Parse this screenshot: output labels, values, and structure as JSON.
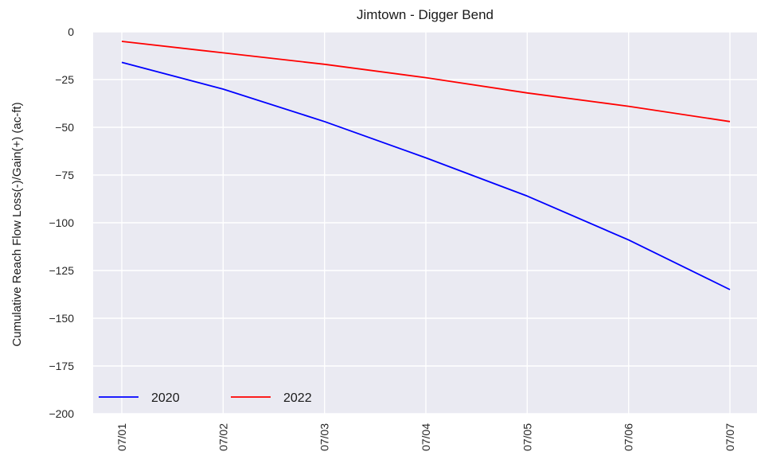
{
  "chart_data": {
    "type": "line",
    "title": "Jimtown - Digger Bend",
    "xlabel": "",
    "ylabel": "Cumulative Reach Flow Loss(-)/Gain(+) (ac-ft)",
    "x": [
      "07/01",
      "07/02",
      "07/03",
      "07/04",
      "07/05",
      "07/06",
      "07/07"
    ],
    "yticks": [
      0,
      -25,
      -50,
      -75,
      -100,
      -125,
      -150,
      -175,
      -200
    ],
    "ytick_labels": [
      "0",
      "−25",
      "−50",
      "−75",
      "−100",
      "−125",
      "−150",
      "−175",
      "−200"
    ],
    "ylim": [
      -200,
      0
    ],
    "grid": true,
    "legend_position": "bottom-left",
    "series": [
      {
        "name": "2020",
        "color": "#0000ff",
        "values": [
          -16,
          -30,
          -47,
          -66,
          -86,
          -109,
          -135
        ]
      },
      {
        "name": "2022",
        "color": "#ff0000",
        "values": [
          -5,
          -11,
          -17,
          -24,
          -32,
          -39,
          -47
        ]
      }
    ]
  }
}
